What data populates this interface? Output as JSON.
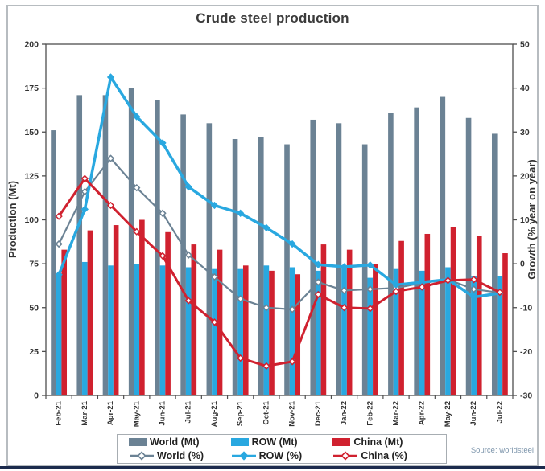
{
  "title": "Crude steel production",
  "source": "Source: worldsteel",
  "colors": {
    "world": "#6b8294",
    "row": "#29a8e0",
    "china": "#d0212f",
    "axis_line": "#4f4f4f",
    "tick_text": "#333333",
    "title_text": "#3b3b3b",
    "legend_border": "#a7adb2",
    "source_text": "#7e96ac",
    "footer_bar": "#1c2b4d",
    "frame": "#b7bcc0"
  },
  "legend": {
    "items": [
      {
        "id": "world-mt",
        "label": "World (Mt)",
        "type": "bar",
        "color": "#6b8294",
        "marker_fill": "#6b8294"
      },
      {
        "id": "row-mt",
        "label": "ROW (Mt)",
        "type": "bar",
        "color": "#29a8e0",
        "marker_fill": "#29a8e0"
      },
      {
        "id": "china-mt",
        "label": "China (Mt)",
        "type": "bar",
        "color": "#d0212f",
        "marker_fill": "#d0212f"
      },
      {
        "id": "world-pct",
        "label": "World (%)",
        "type": "line",
        "color": "#6b8294",
        "marker_fill": "#ffffff"
      },
      {
        "id": "row-pct",
        "label": "ROW (%)",
        "type": "line",
        "color": "#29a8e0",
        "marker_fill": "#29a8e0"
      },
      {
        "id": "china-pct",
        "label": "China (%)",
        "type": "line",
        "color": "#d0212f",
        "marker_fill": "#ffffff"
      }
    ]
  },
  "chart_data": {
    "type": "combo-grouped-bar-and-line",
    "categories": [
      "Feb-21",
      "Mar-21",
      "Apr-21",
      "May-21",
      "Jun-21",
      "Jul-21",
      "Aug-21",
      "Sep-21",
      "Oct-21",
      "Nov-21",
      "Dec-21",
      "Jan-22",
      "Feb-22",
      "Mar-22",
      "Apr-22",
      "May-22",
      "Jun-22",
      "Jul-22"
    ],
    "left_axis": {
      "label": "Production (Mt)",
      "min": 0,
      "max": 200,
      "step": 25
    },
    "right_axis": {
      "label": "Growth (% year on year)",
      "min": -30,
      "max": 50,
      "step": 10
    },
    "grid": false,
    "legend_position": "bottom",
    "bar_series": [
      {
        "name": "World (Mt)",
        "axis": "left",
        "color": "#6b8294",
        "values": [
          151,
          171,
          171,
          175,
          168,
          160,
          155,
          146,
          147,
          143,
          157,
          155,
          143,
          161,
          164,
          170,
          158,
          149
        ]
      },
      {
        "name": "ROW (Mt)",
        "axis": "left",
        "color": "#29a8e0",
        "values": [
          68,
          76,
          74,
          75,
          74,
          73,
          72,
          72,
          74,
          73,
          71,
          74,
          67,
          72,
          71,
          73,
          68,
          68
        ]
      },
      {
        "name": "China (Mt)",
        "axis": "left",
        "color": "#d0212f",
        "values": [
          83,
          94,
          97,
          100,
          93,
          86,
          83,
          74,
          71,
          69,
          86,
          83,
          75,
          88,
          92,
          96,
          91,
          81
        ]
      }
    ],
    "line_series": [
      {
        "name": "World (%)",
        "axis": "right",
        "color": "#6b8294",
        "marker_fill": "#ffffff",
        "width": 2.2,
        "values": [
          4.5,
          16.4,
          24,
          17.3,
          11.5,
          2,
          -3,
          -8,
          -10,
          -10.4,
          -4.2,
          -6.1,
          -5.8,
          -5.5,
          -4.4,
          -3.6,
          -5.8,
          -6.6
        ]
      },
      {
        "name": "ROW (%)",
        "axis": "right",
        "color": "#29a8e0",
        "marker_fill": "#29a8e0",
        "width": 3.5,
        "values": [
          -2.5,
          12.4,
          42.5,
          33.5,
          27.5,
          17.5,
          13.3,
          11.5,
          8.2,
          4.5,
          -0.2,
          -0.7,
          -0.3,
          -4.8,
          -4.2,
          -3.6,
          -7.6,
          -6.7
        ]
      },
      {
        "name": "China (%)",
        "axis": "right",
        "color": "#d0212f",
        "marker_fill": "#ffffff",
        "width": 3,
        "values": [
          10.8,
          19.4,
          13.3,
          7.3,
          1.8,
          -8.4,
          -13.3,
          -21.5,
          -23.3,
          -22.3,
          -7,
          -10,
          -10.2,
          -6.3,
          -5.3,
          -3.8,
          -3.6,
          -6.5
        ]
      }
    ]
  }
}
